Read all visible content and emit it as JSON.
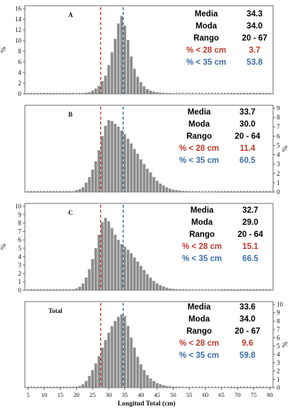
{
  "chart_data": {
    "type": "bar",
    "x_axis": {
      "label": "Longitud Total (cm)",
      "ticks": [
        5,
        10,
        15,
        20,
        25,
        30,
        35,
        40,
        45,
        50,
        55,
        60,
        65,
        70,
        75,
        80
      ],
      "range": [
        4,
        81
      ]
    },
    "y_axis_label": "%",
    "reference_lines": [
      {
        "x": 27.5,
        "color": "#c0392b"
      },
      {
        "x": 34.5,
        "color": "#3a6ea5"
      }
    ],
    "colors": {
      "bar_fill": "#8c8c8c",
      "bar_stroke": "#b0b0b0",
      "red": "#c0392b",
      "blue": "#3a6ea5"
    },
    "panels": [
      {
        "label": "A",
        "y_axis_side": "left",
        "ylim": [
          0,
          16
        ],
        "yticks": [
          0,
          2,
          4,
          6,
          8,
          10,
          12,
          14,
          16
        ],
        "bins": [
          20,
          21,
          22,
          23,
          24,
          25,
          26,
          27,
          28,
          29,
          30,
          31,
          32,
          33,
          34,
          35,
          36,
          37,
          38,
          39,
          40,
          41,
          42,
          43,
          44,
          45,
          46,
          47,
          48,
          49,
          50,
          51,
          52,
          53,
          54,
          55,
          56,
          57,
          58,
          59,
          60,
          61,
          62,
          63,
          64,
          65,
          66,
          67
        ],
        "values": [
          0.05,
          0.1,
          0.1,
          0.2,
          0.3,
          0.6,
          1.0,
          1.5,
          2.4,
          3.4,
          5.4,
          7.8,
          10.3,
          13.2,
          14.6,
          12.8,
          10.1,
          7.0,
          4.7,
          3.2,
          2.2,
          1.4,
          0.9,
          0.6,
          0.4,
          0.3,
          0.2,
          0.15,
          0.1,
          0.1,
          0.05,
          0.05,
          0.05,
          0.05,
          0.03,
          0.03,
          0.03,
          0.02,
          0.02,
          0.02,
          0.02,
          0.02,
          0.02,
          0.02,
          0.02,
          0.02,
          0.02,
          0.02
        ],
        "stats": {
          "media_label": "Media",
          "media": "34.3",
          "moda_label": "Moda",
          "moda": "34.0",
          "rango_label": "Rango",
          "rango": "20 - 67",
          "p28_label": "% < 28 cm",
          "p28": "3.7",
          "p35_label": "% < 35 cm",
          "p35": "53.8"
        }
      },
      {
        "label": "B",
        "y_axis_side": "right",
        "ylim": [
          0,
          9
        ],
        "yticks": [
          0,
          1,
          2,
          3,
          4,
          5,
          6,
          7,
          8,
          9
        ],
        "bins": [
          20,
          21,
          22,
          23,
          24,
          25,
          26,
          27,
          28,
          29,
          30,
          31,
          32,
          33,
          34,
          35,
          36,
          37,
          38,
          39,
          40,
          41,
          42,
          43,
          44,
          45,
          46,
          47,
          48,
          49,
          50,
          51,
          52,
          53,
          54,
          55,
          56,
          57,
          58,
          59,
          60,
          61,
          62,
          63,
          64
        ],
        "values": [
          0.2,
          0.3,
          0.5,
          1.0,
          1.6,
          2.4,
          3.3,
          4.5,
          6.0,
          7.1,
          7.7,
          7.6,
          7.3,
          7.0,
          6.6,
          6.2,
          5.7,
          5.2,
          4.6,
          4.1,
          3.5,
          3.0,
          2.5,
          2.1,
          1.6,
          1.2,
          0.9,
          0.7,
          0.5,
          0.35,
          0.25,
          0.2,
          0.15,
          0.1,
          0.08,
          0.06,
          0.05,
          0.04,
          0.03,
          0.03,
          0.02,
          0.02,
          0.02,
          0.02,
          0.02
        ],
        "stats": {
          "media_label": "Media",
          "media": "33.7",
          "moda_label": "Moda",
          "moda": "30.0",
          "rango_label": "Rango",
          "rango": "20 - 64",
          "p28_label": "% < 28 cm",
          "p28": "11.4",
          "p35_label": "% < 35 cm",
          "p35": "60.5"
        }
      },
      {
        "label": "C",
        "y_axis_side": "left",
        "ylim": [
          0,
          10
        ],
        "yticks": [
          0,
          1,
          2,
          3,
          4,
          5,
          6,
          7,
          8,
          9,
          10
        ],
        "bins": [
          20,
          21,
          22,
          23,
          24,
          25,
          26,
          27,
          28,
          29,
          30,
          31,
          32,
          33,
          34,
          35,
          36,
          37,
          38,
          39,
          40,
          41,
          42,
          43,
          44,
          45,
          46,
          47,
          48,
          49,
          50,
          51,
          52,
          53,
          54,
          55,
          56,
          57,
          58,
          59,
          60,
          61,
          62,
          63,
          64
        ],
        "values": [
          0.2,
          0.4,
          0.8,
          1.5,
          2.5,
          3.7,
          5.0,
          6.6,
          8.1,
          8.6,
          8.2,
          7.4,
          6.6,
          6.0,
          5.5,
          5.2,
          4.8,
          4.4,
          3.9,
          3.4,
          2.9,
          2.4,
          1.9,
          1.5,
          1.1,
          0.8,
          0.6,
          0.45,
          0.3,
          0.2,
          0.15,
          0.1,
          0.08,
          0.06,
          0.05,
          0.04,
          0.03,
          0.03,
          0.02,
          0.02,
          0.02,
          0.02,
          0.02,
          0.02,
          0.02
        ],
        "stats": {
          "media_label": "Media",
          "media": "32.7",
          "moda_label": "Moda",
          "moda": "29.0",
          "rango_label": "Rango",
          "rango": "20 - 64",
          "p28_label": "% < 28 cm",
          "p28": "15.1",
          "p35_label": "% < 35 cm",
          "p35": "66.5"
        }
      },
      {
        "label": "Total",
        "y_axis_side": "right",
        "ylim": [
          0,
          10
        ],
        "yticks": [
          0,
          1,
          2,
          3,
          4,
          5,
          6,
          7,
          8,
          9,
          10
        ],
        "bins": [
          20,
          21,
          22,
          23,
          24,
          25,
          26,
          27,
          28,
          29,
          30,
          31,
          32,
          33,
          34,
          35,
          36,
          37,
          38,
          39,
          40,
          41,
          42,
          43,
          44,
          45,
          46,
          47,
          48,
          49,
          50,
          51,
          52,
          53,
          54,
          55,
          56,
          57,
          58,
          59,
          60,
          61,
          62,
          63,
          64,
          65,
          66,
          67
        ],
        "values": [
          0.1,
          0.2,
          0.4,
          0.8,
          1.4,
          2.1,
          2.9,
          3.8,
          4.8,
          5.7,
          6.6,
          7.4,
          8.0,
          8.5,
          8.8,
          8.6,
          7.4,
          6.0,
          4.8,
          3.7,
          2.8,
          2.1,
          1.5,
          1.1,
          0.8,
          0.55,
          0.4,
          0.3,
          0.2,
          0.15,
          0.1,
          0.08,
          0.06,
          0.05,
          0.04,
          0.03,
          0.03,
          0.02,
          0.02,
          0.02,
          0.02,
          0.02,
          0.02,
          0.02,
          0.02,
          0.02,
          0.02,
          0.02
        ],
        "stats": {
          "media_label": "Media",
          "media": "33.6",
          "moda_label": "Moda",
          "moda": "34.0",
          "rango_label": "Rango",
          "rango": "20 - 67",
          "p28_label": "% < 28 cm",
          "p28": "9.6",
          "p35_label": "% < 35 cm",
          "p35": "59.8"
        }
      }
    ]
  }
}
